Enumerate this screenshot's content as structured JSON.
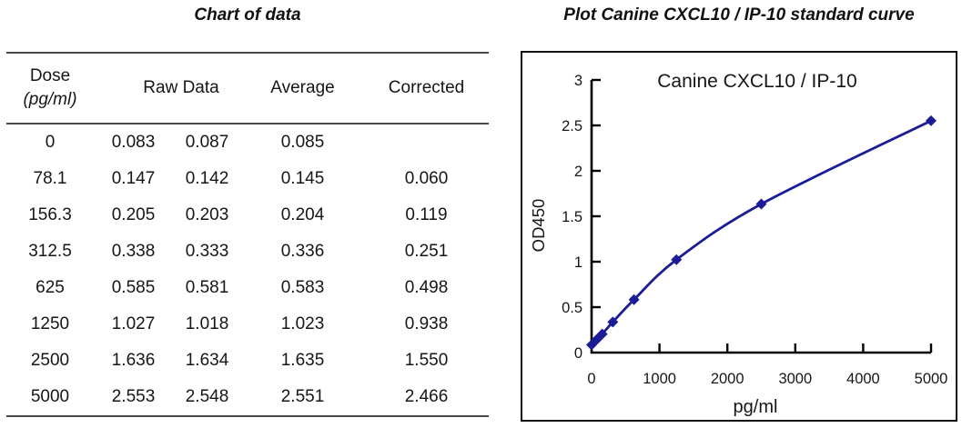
{
  "table": {
    "title": "Chart of data",
    "headers": {
      "dose_line1": "Dose",
      "dose_unit": "(pg/ml)",
      "raw": "Raw Data",
      "average": "Average",
      "corrected": "Corrected"
    },
    "rows": [
      {
        "dose": "0",
        "raw1": "0.083",
        "raw2": "0.087",
        "average": "0.085",
        "corrected": ""
      },
      {
        "dose": "78.1",
        "raw1": "0.147",
        "raw2": "0.142",
        "average": "0.145",
        "corrected": "0.060"
      },
      {
        "dose": "156.3",
        "raw1": "0.205",
        "raw2": "0.203",
        "average": "0.204",
        "corrected": "0.119"
      },
      {
        "dose": "312.5",
        "raw1": "0.338",
        "raw2": "0.333",
        "average": "0.336",
        "corrected": "0.251"
      },
      {
        "dose": "625",
        "raw1": "0.585",
        "raw2": "0.581",
        "average": "0.583",
        "corrected": "0.498"
      },
      {
        "dose": "1250",
        "raw1": "1.027",
        "raw2": "1.018",
        "average": "1.023",
        "corrected": "0.938"
      },
      {
        "dose": "2500",
        "raw1": "1.636",
        "raw2": "1.634",
        "average": "1.635",
        "corrected": "1.550"
      },
      {
        "dose": "5000",
        "raw1": "2.553",
        "raw2": "2.548",
        "average": "2.551",
        "corrected": "2.466"
      }
    ]
  },
  "plot": {
    "title": "Plot Canine CXCL10 / IP-10 standard curve"
  },
  "chart_data": {
    "type": "line",
    "title": "Canine CXCL10 / IP-10",
    "xlabel": "pg/ml",
    "ylabel": "OD450",
    "x": [
      0,
      78.1,
      156.3,
      312.5,
      625,
      1250,
      2500,
      5000
    ],
    "y": [
      0.085,
      0.145,
      0.204,
      0.336,
      0.583,
      1.023,
      1.635,
      2.551
    ],
    "series_name": "Canine CXCL10 / IP-10 standard",
    "xlim": [
      0,
      5000
    ],
    "ylim": [
      0,
      3
    ],
    "x_ticks": [
      0,
      1000,
      2000,
      3000,
      4000,
      5000
    ],
    "y_ticks": [
      0,
      0.5,
      1,
      1.5,
      2,
      2.5,
      3
    ],
    "grid": false,
    "legend": "none",
    "marker": "diamond",
    "line_color": "#1c1c96",
    "axis_color": "#000000",
    "text_color": "#161616"
  }
}
